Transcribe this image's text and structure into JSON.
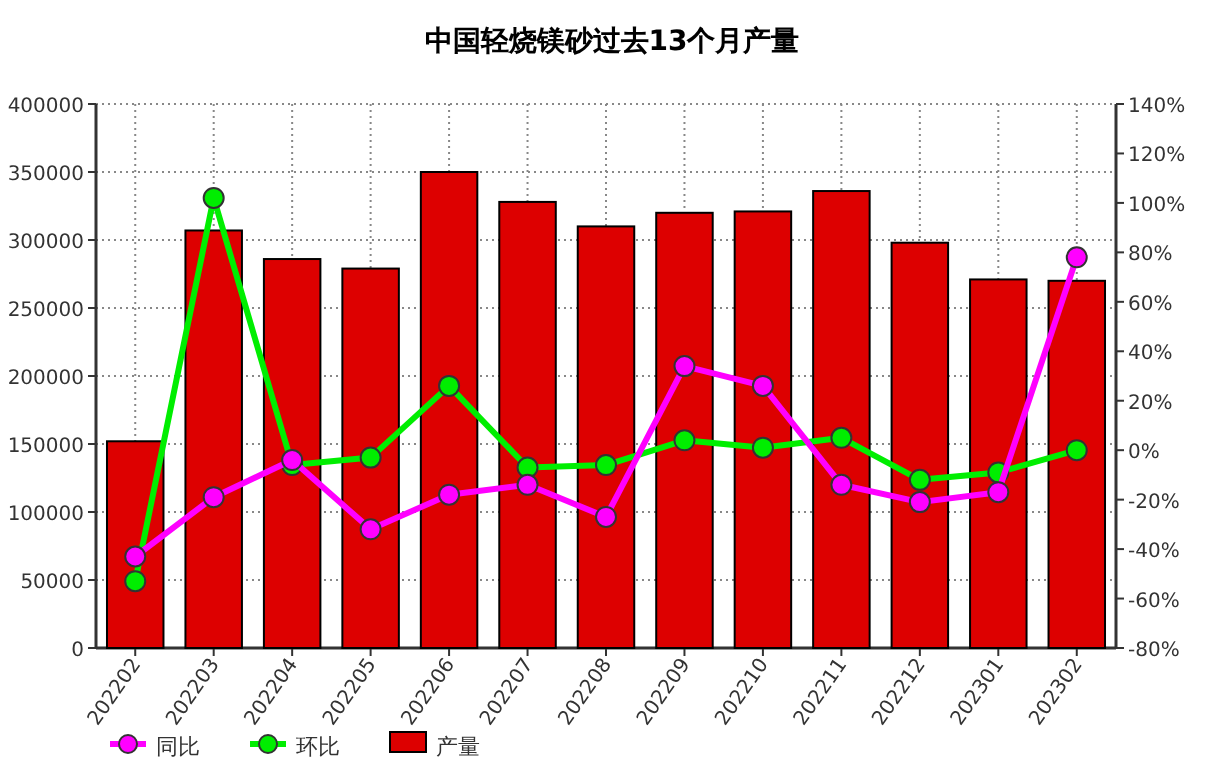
{
  "chart_data": {
    "type": "bar",
    "title": "中国轻烧镁砂过去13个月产量",
    "categories": [
      "202202",
      "202203",
      "202204",
      "202205",
      "202206",
      "202207",
      "202208",
      "202209",
      "202210",
      "202211",
      "202212",
      "202301",
      "202302"
    ],
    "series": [
      {
        "name": "同比",
        "type": "line",
        "axis": "y2",
        "color": "#ff00ff",
        "marker": "circle",
        "values": [
          -43,
          -19,
          -4,
          -32,
          -18,
          -14,
          -27,
          34,
          26,
          -14,
          -21,
          -17,
          78
        ]
      },
      {
        "name": "环比",
        "type": "line",
        "axis": "y2",
        "color": "#00ee00",
        "marker": "circle",
        "values": [
          -53,
          102,
          -6,
          -3,
          26,
          -7,
          -6,
          4,
          1,
          5,
          -12,
          -9,
          0
        ]
      },
      {
        "name": "产量",
        "color": "#dd0000",
        "values": [
          152000,
          307000,
          286000,
          279000,
          350000,
          328000,
          310000,
          320000,
          321000,
          336000,
          298000,
          271000,
          270000
        ]
      }
    ],
    "ylim": [
      0,
      400000
    ],
    "yticks": [
      0,
      50000,
      100000,
      150000,
      200000,
      250000,
      300000,
      350000,
      400000
    ],
    "y2lim": [
      -80,
      140
    ],
    "y2ticks": [
      {
        "value": -80,
        "label": "-80%"
      },
      {
        "value": -60,
        "label": "-60%"
      },
      {
        "value": -40,
        "label": "-40%"
      },
      {
        "value": -20,
        "label": "-20%"
      },
      {
        "value": 0,
        "label": "0%"
      },
      {
        "value": 20,
        "label": "20%"
      },
      {
        "value": 40,
        "label": "40%"
      },
      {
        "value": 60,
        "label": "60%"
      },
      {
        "value": 80,
        "label": "80%"
      },
      {
        "value": 100,
        "label": "100%"
      },
      {
        "value": 120,
        "label": "120%"
      },
      {
        "value": 140,
        "label": "140%"
      }
    ],
    "grid": true,
    "legend": "bottom left"
  }
}
